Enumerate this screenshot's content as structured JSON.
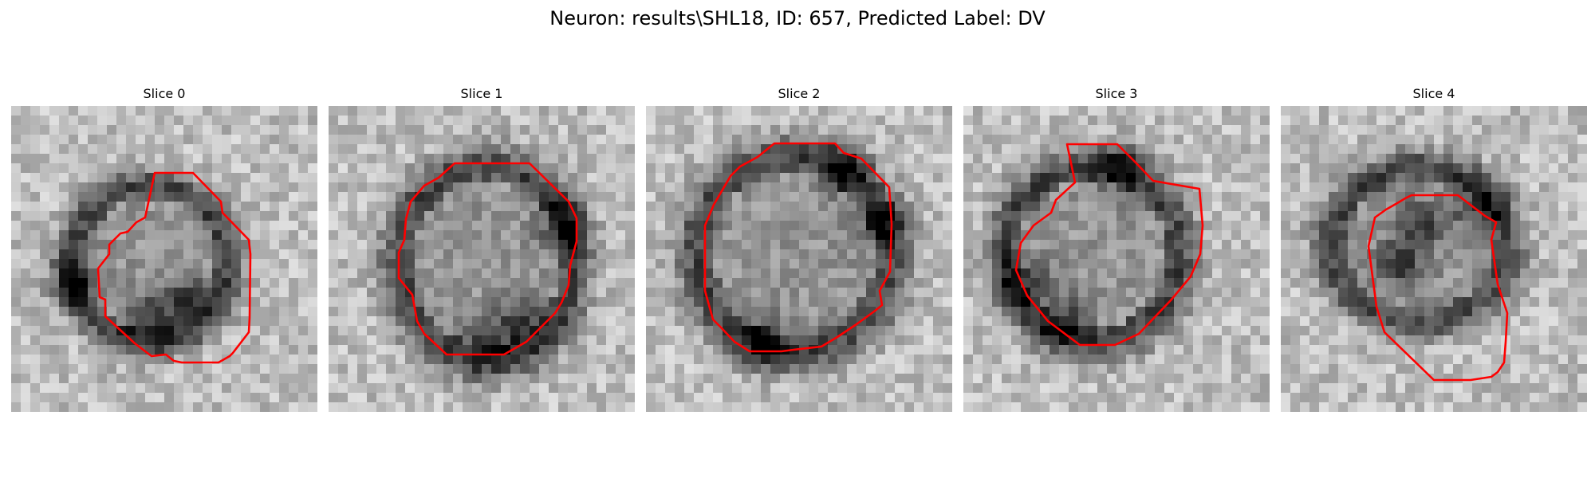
{
  "figure": {
    "title": "Neuron: results\\SHL18, ID: 657, Predicted Label: DV"
  },
  "panels": [
    {
      "title": "Slice 0"
    },
    {
      "title": "Slice 1"
    },
    {
      "title": "Slice 2"
    },
    {
      "title": "Slice 3"
    },
    {
      "title": "Slice 4"
    }
  ],
  "colors": {
    "contour": "#ff0000"
  }
}
